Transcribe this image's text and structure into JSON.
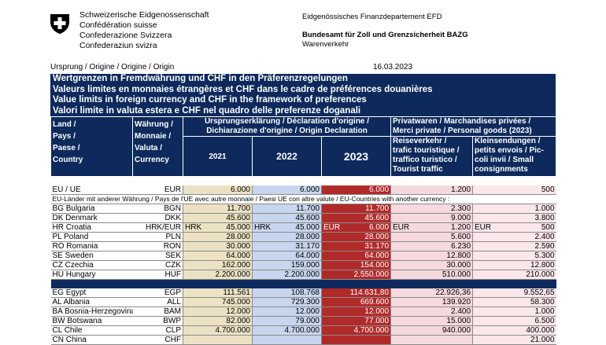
{
  "header": {
    "federation": [
      "Schweizerische Eidgenossenschaft",
      "Confédération suisse",
      "Confederazione Svizzera",
      "Confederaziun svizra"
    ],
    "department": "Eidgenössisches Finanzdepartement EFD",
    "office": "Bundesamt für Zoll und Grenzsicherheit BAZG",
    "unit": "Warenverkehr"
  },
  "origin_label": "Ursprung / Origine / Origine / Origin",
  "date": "16.03.2023",
  "title_lines": [
    "Wertgrenzen in Fremdwährung und CHF in den Präferenzregelungen",
    "Valeurs limites en monnaies étrangères et CHF dans le cadre de préférences douanières",
    "Value limits in foreign currency and CHF in the framework of preferences",
    "Valori limite in valuta estera e CHF nel quadro delle preferenze doganali"
  ],
  "columns": {
    "land": [
      "Land /",
      "Pays /",
      "Paese /",
      "Country"
    ],
    "currency": [
      "Währung /",
      "Monnaie /",
      "Valuta /",
      "Currency"
    ],
    "declaration": [
      "Ursprungserklärung / Déclaration d'origine /",
      "Dichiarazione d'origine / Origin Declaration"
    ],
    "year_2021": "2021",
    "year_2022": "2022",
    "year_2023": "2023",
    "private": [
      "Privatwaren / Marchandises privées /",
      "Merci private / Personal goods (2023)"
    ],
    "travel": [
      "Reiseverkehr /",
      "trafic touristique /",
      "traffico turistico /",
      "Tourist traffic"
    ],
    "small": [
      "Kleinsendungen /",
      "petits envois / Pic-",
      "coli invii / Small",
      "consignments"
    ]
  },
  "eu_row": {
    "name": "EU / UE",
    "currency": "EUR",
    "v2021": "6.000",
    "v2022": "6.000",
    "v2023": "6.000",
    "travel": "1.200",
    "small": "500"
  },
  "eu_note": "EU-Länder mit anderer Währung / Pays de l'UE avec autre monnaie / Paesi UE con altre valute / EU-Countries with another currency :",
  "group1": [
    {
      "name": "BG Bulgaria",
      "currency": "BGN",
      "v2021": "11.700",
      "v2022": "11.700",
      "v2023": "11.700",
      "travel": "2.300",
      "small": "1.000"
    },
    {
      "name": "DK Denmark",
      "currency": "DKK",
      "v2021": "45.600",
      "v2022": "45.600",
      "v2023": "45.600",
      "travel": "9.000",
      "small": "3.800"
    },
    {
      "name": "HR Croatia",
      "currency": "HRK/EUR",
      "p2021": "HRK",
      "v2021": "45.000",
      "p2022": "HRK",
      "v2022": "45.000",
      "p2023": "EUR",
      "v2023": "6.000",
      "ptravel": "EUR",
      "travel": "1.200",
      "psmall": "EUR",
      "small": "500"
    },
    {
      "name": "PL  Poland",
      "currency": "PLN",
      "v2021": "28.000",
      "v2022": "28.000",
      "v2023": "28.000",
      "travel": "5.600",
      "small": "2.400"
    },
    {
      "name": "RO Romania",
      "currency": "RON",
      "v2021": "30.000",
      "v2022": "31.170",
      "v2023": "31.170",
      "travel": "6.230",
      "small": "2.590"
    },
    {
      "name": "SE Sweden",
      "currency": "SEK",
      "v2021": "64.000",
      "v2022": "64.000",
      "v2023": "64.000",
      "travel": "12.800",
      "small": "5.300"
    },
    {
      "name": "CZ Czechia",
      "currency": "CZK",
      "v2021": "162.000",
      "v2022": "159.000",
      "v2023": "154.000",
      "travel": "30.000",
      "small": "12.800"
    },
    {
      "name": "HU Hungary",
      "currency": "HUF",
      "v2021": "2.200.000",
      "v2022": "2.200.000",
      "v2023": "2.550.000",
      "travel": "510.000",
      "small": "210.000"
    }
  ],
  "group2": [
    {
      "name": "EG Egypt",
      "currency": "EGP",
      "v2021": "111.561",
      "v2022": "108.768",
      "v2023": "114.631,80",
      "travel": "22.926,36",
      "small": "9.552,65"
    },
    {
      "name": "AL  Albania",
      "currency": "ALL",
      "v2021": "745.000",
      "v2022": "729.300",
      "v2023": "669.600",
      "travel": "139.920",
      "small": "58.300"
    },
    {
      "name": "BA Bosnia-Herzegovina",
      "currency": "BAM",
      "v2021": "12.000",
      "v2022": "12.000",
      "v2023": "12.000",
      "travel": "2.400",
      "small": "1.000"
    },
    {
      "name": "BW Botswana",
      "currency": "BWP",
      "v2021": "82.000",
      "v2022": "79.000",
      "v2023": "77.000",
      "travel": "15.000",
      "small": "6.500"
    },
    {
      "name": "CL Chile",
      "currency": "CLP",
      "v2021": "4.700.000",
      "v2022": "4.700.000",
      "v2023": "4.700.000",
      "travel": "940.000",
      "small": "400.000"
    },
    {
      "name": "CN China",
      "currency": "CHF",
      "v2021": "",
      "v2022": "",
      "v2023": "",
      "travel": "",
      "small": "21.000"
    }
  ]
}
